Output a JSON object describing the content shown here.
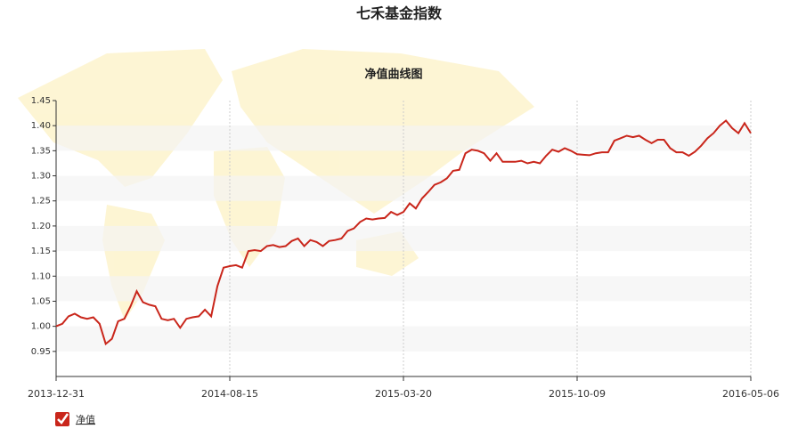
{
  "chart_data": {
    "type": "line",
    "title": "七禾基金指数",
    "subtitle": "净值曲线图",
    "categories": [
      "2013-12-31",
      null,
      null,
      null,
      null,
      null,
      null,
      null,
      null,
      null,
      null,
      null,
      null,
      null,
      null,
      null,
      null,
      null,
      null,
      null,
      null,
      null,
      null,
      null,
      null,
      null,
      null,
      null,
      "2014-08-15",
      null,
      null,
      null,
      null,
      null,
      null,
      null,
      null,
      null,
      null,
      null,
      null,
      null,
      null,
      null,
      null,
      null,
      null,
      null,
      null,
      null,
      null,
      null,
      null,
      null,
      null,
      null,
      "2015-03-20",
      null,
      null,
      null,
      null,
      null,
      null,
      null,
      null,
      null,
      null,
      null,
      null,
      null,
      null,
      null,
      null,
      null,
      null,
      null,
      null,
      null,
      null,
      null,
      null,
      null,
      null,
      null,
      "2015-10-09",
      null,
      null,
      null,
      null,
      null,
      null,
      null,
      null,
      null,
      null,
      null,
      null,
      null,
      null,
      null,
      null,
      null,
      null,
      null,
      null,
      null,
      null,
      null,
      null,
      null,
      null,
      null,
      "2016-05-06"
    ],
    "series": [
      {
        "name": "净值",
        "color": "#c9261b",
        "values": [
          1.0,
          1.005,
          1.02,
          1.025,
          1.018,
          1.015,
          1.018,
          1.005,
          0.965,
          0.975,
          1.01,
          1.015,
          1.04,
          1.07,
          1.048,
          1.043,
          1.04,
          1.015,
          1.012,
          1.015,
          0.997,
          1.015,
          1.018,
          1.02,
          1.033,
          1.02,
          1.08,
          1.117,
          1.12,
          1.122,
          1.117,
          1.15,
          1.152,
          1.15,
          1.16,
          1.162,
          1.158,
          1.16,
          1.17,
          1.175,
          1.16,
          1.172,
          1.168,
          1.16,
          1.17,
          1.172,
          1.175,
          1.19,
          1.195,
          1.208,
          1.215,
          1.213,
          1.215,
          1.216,
          1.228,
          1.222,
          1.228,
          1.245,
          1.235,
          1.255,
          1.268,
          1.282,
          1.287,
          1.295,
          1.31,
          1.312,
          1.345,
          1.352,
          1.35,
          1.345,
          1.33,
          1.345,
          1.328,
          1.328,
          1.328,
          1.33,
          1.325,
          1.328,
          1.325,
          1.34,
          1.352,
          1.348,
          1.355,
          1.35,
          1.343,
          1.342,
          1.341,
          1.345,
          1.347,
          1.347,
          1.37,
          1.375,
          1.38,
          1.377,
          1.38,
          1.372,
          1.365,
          1.372,
          1.372,
          1.355,
          1.347,
          1.347,
          1.34,
          1.348,
          1.36,
          1.375,
          1.385,
          1.4,
          1.41,
          1.395,
          1.385,
          1.405,
          1.385
        ]
      }
    ],
    "ylim": [
      0.9,
      1.45
    ],
    "yticks": [
      0.95,
      {
        "value": 1,
        "label": "1.00"
      },
      1.05,
      {
        "value": 1.1,
        "label": "1.10"
      },
      1.15,
      {
        "value": 1.2,
        "label": "1.20"
      },
      1.25,
      {
        "value": 1.3,
        "label": "1.30"
      },
      1.35,
      {
        "value": 1.4,
        "label": "1.40"
      },
      1.45
    ],
    "grid": true
  }
}
